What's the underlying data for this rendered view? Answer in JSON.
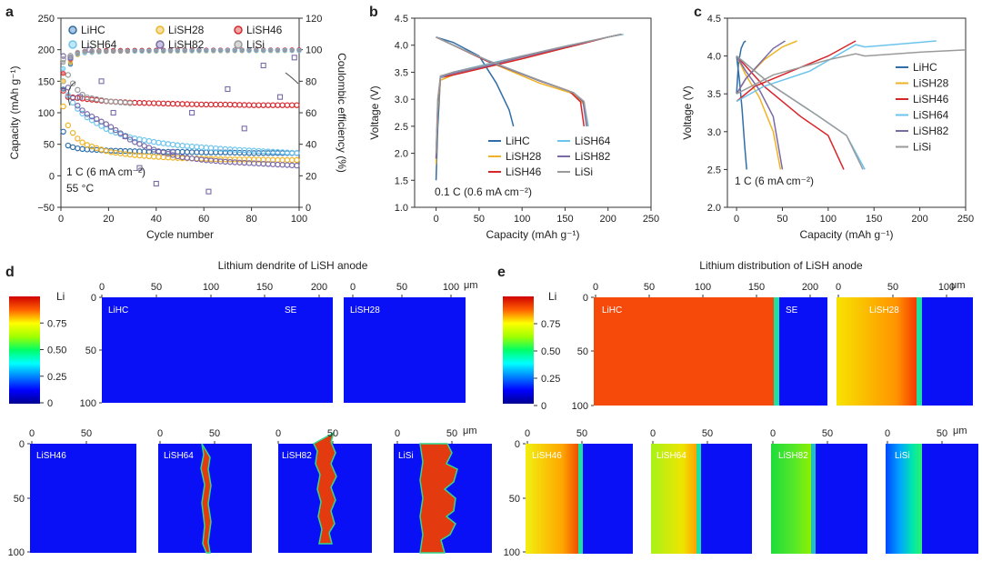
{
  "panels": {
    "a": "a",
    "b": "b",
    "c": "c",
    "d": "d",
    "e": "e"
  },
  "colors": {
    "LiHC": "#2f6ea8",
    "LiSH28": "#f0b323",
    "LiSH46": "#d7262b",
    "LiSH64": "#6cc4ee",
    "LiSH82": "#7a6aa8",
    "LiSi": "#9a9a9a"
  },
  "chart_data": [
    {
      "id": "a",
      "type": "scatter",
      "xlabel": "Cycle number",
      "ylabel": "Capacity (mAh g⁻¹)",
      "y2label": "Coulombic efficiency (%)",
      "xlim": [
        0,
        100
      ],
      "ylim": [
        -50,
        250
      ],
      "y2lim": [
        0,
        120
      ],
      "xticks": [
        "0",
        "20",
        "40",
        "60",
        "80",
        "100"
      ],
      "yticks": [
        "−50",
        "0",
        "50",
        "100",
        "150",
        "200",
        "250"
      ],
      "y2ticks": [
        "0",
        "20",
        "40",
        "60",
        "80",
        "100",
        "120"
      ],
      "annotations": [
        "1 C (6 mA cm⁻²)",
        "55 °C"
      ],
      "legend": [
        "LiHC",
        "LiSH28",
        "LiSH46",
        "LiSH64",
        "LiSH82",
        "LiSi"
      ],
      "capacity_series": [
        {
          "name": "LiHC",
          "x": [
            1,
            3,
            6,
            10,
            20,
            30,
            40,
            50,
            60,
            70,
            80,
            90,
            100
          ],
          "y": [
            70,
            48,
            44,
            42,
            40,
            39,
            38,
            38,
            37,
            37,
            36,
            36,
            36
          ]
        },
        {
          "name": "LiSH28",
          "x": [
            1,
            3,
            6,
            10,
            20,
            30,
            40,
            50,
            60,
            70,
            80,
            90,
            100
          ],
          "y": [
            110,
            80,
            62,
            50,
            38,
            33,
            30,
            28,
            27,
            26,
            26,
            25,
            25
          ]
        },
        {
          "name": "LiSH46",
          "x": [
            1,
            3,
            6,
            10,
            20,
            30,
            40,
            50,
            60,
            70,
            80,
            90,
            100
          ],
          "y": [
            135,
            125,
            124,
            122,
            118,
            116,
            115,
            114,
            113,
            113,
            112,
            112,
            112
          ]
        },
        {
          "name": "LiSH64",
          "x": [
            1,
            3,
            6,
            10,
            20,
            30,
            40,
            50,
            60,
            70,
            80,
            90,
            100
          ],
          "y": [
            150,
            128,
            110,
            95,
            72,
            60,
            53,
            48,
            45,
            42,
            40,
            38,
            36
          ]
        },
        {
          "name": "LiSH82",
          "x": [
            1,
            3,
            6,
            10,
            20,
            30,
            40,
            50,
            60,
            70,
            80,
            90,
            100
          ],
          "y": [
            190,
            140,
            115,
            100,
            80,
            55,
            40,
            30,
            25,
            22,
            20,
            18,
            16
          ]
        },
        {
          "name": "LiSi",
          "x": [
            1,
            3,
            6,
            10,
            20,
            30
          ],
          "y": [
            185,
            160,
            140,
            125,
            118,
            115
          ]
        }
      ],
      "ce_series": [
        {
          "name": "LiHC",
          "x": [
            1,
            5,
            10,
            20,
            40,
            60,
            80,
            100
          ],
          "y": [
            75,
            96,
            99,
            99.5,
            99.6,
            99.7,
            99.7,
            99.8
          ]
        },
        {
          "name": "LiSH28",
          "x": [
            1,
            5,
            10,
            20,
            40,
            60,
            80,
            100
          ],
          "y": [
            80,
            96,
            98,
            99,
            99,
            99.2,
            99.3,
            99.4
          ]
        },
        {
          "name": "LiSH46",
          "x": [
            1,
            5,
            10,
            20,
            40,
            60,
            80,
            100
          ],
          "y": [
            85,
            97,
            99,
            99.5,
            99.7,
            99.8,
            99.8,
            99.9
          ]
        },
        {
          "name": "LiSH64",
          "x": [
            1,
            5,
            10,
            20,
            40,
            60,
            80,
            100
          ],
          "y": [
            88,
            97,
            98,
            99,
            99.2,
            99.4,
            99.5,
            99.5
          ]
        },
        {
          "name": "LiSH82",
          "x": [
            4,
            8,
            12,
            17,
            22,
            27,
            33,
            40,
            47,
            55,
            62,
            70,
            77,
            85,
            92,
            98
          ],
          "y": [
            95,
            70,
            100,
            80,
            60,
            45,
            25,
            15,
            35,
            60,
            10,
            75,
            50,
            90,
            70,
            95
          ]
        },
        {
          "name": "LiSi",
          "x": [
            1,
            5,
            10,
            20,
            30
          ],
          "y": [
            92,
            98,
            99,
            99,
            99
          ]
        }
      ]
    },
    {
      "id": "b",
      "type": "line",
      "xlabel": "Capacity (mAh g⁻¹)",
      "ylabel": "Voltage (V)",
      "xlim": [
        -25,
        250
      ],
      "ylim": [
        1.0,
        4.5
      ],
      "xticks": [
        "0",
        "50",
        "100",
        "150",
        "200",
        "250"
      ],
      "yticks": [
        "1.0",
        "1.5",
        "2.0",
        "2.5",
        "3.0",
        "3.5",
        "4.0",
        "4.5"
      ],
      "annotation": "0.1 C (0.6 mA cm⁻²)",
      "legend": [
        "LiHC",
        "LiSH28",
        "LiSH46",
        "LiSH64",
        "LiSH82",
        "LiSi"
      ],
      "series": [
        {
          "name": "LiHC",
          "charge_x": [
            0,
            2,
            5,
            20,
            60,
            100,
            150,
            200,
            215
          ],
          "charge_y": [
            1.5,
            2.5,
            3.4,
            3.5,
            3.65,
            3.8,
            3.95,
            4.15,
            4.2
          ],
          "discharge_x": [
            0,
            20,
            50,
            70,
            85,
            90
          ],
          "discharge_y": [
            4.15,
            4.05,
            3.8,
            3.3,
            2.8,
            2.5
          ]
        },
        {
          "name": "LiSH28",
          "charge_x": [
            0,
            2,
            5,
            20,
            60,
            100,
            150,
            200,
            215
          ],
          "charge_y": [
            1.8,
            2.8,
            3.35,
            3.45,
            3.6,
            3.75,
            3.95,
            4.15,
            4.2
          ],
          "discharge_x": [
            0,
            20,
            60,
            120,
            160,
            172,
            176
          ],
          "discharge_y": [
            4.15,
            4.0,
            3.7,
            3.3,
            3.1,
            2.9,
            2.5
          ]
        },
        {
          "name": "LiSH46",
          "charge_x": [
            0,
            2,
            5,
            20,
            60,
            100,
            150,
            200,
            215
          ],
          "charge_y": [
            1.9,
            2.9,
            3.4,
            3.45,
            3.6,
            3.75,
            3.95,
            4.15,
            4.2
          ],
          "discharge_x": [
            0,
            20,
            60,
            120,
            155,
            168,
            172
          ],
          "discharge_y": [
            4.15,
            4.0,
            3.7,
            3.35,
            3.15,
            2.95,
            2.5
          ]
        },
        {
          "name": "LiSH64",
          "charge_x": [
            0,
            2,
            5,
            20,
            60,
            100,
            150,
            200,
            218
          ],
          "charge_y": [
            2.0,
            3.0,
            3.4,
            3.5,
            3.65,
            3.8,
            3.98,
            4.15,
            4.2
          ],
          "discharge_x": [
            0,
            20,
            60,
            120,
            160,
            172,
            177
          ],
          "discharge_y": [
            4.15,
            4.0,
            3.72,
            3.35,
            3.12,
            2.95,
            2.5
          ]
        },
        {
          "name": "LiSH82",
          "charge_x": [
            0,
            2,
            5,
            20,
            60,
            100,
            150,
            200,
            215
          ],
          "charge_y": [
            1.9,
            2.9,
            3.42,
            3.48,
            3.62,
            3.78,
            3.97,
            4.15,
            4.2
          ],
          "discharge_x": [
            0,
            20,
            60,
            120,
            160,
            171,
            175
          ],
          "discharge_y": [
            4.15,
            4.0,
            3.71,
            3.34,
            3.12,
            2.95,
            2.5
          ]
        },
        {
          "name": "LiSi",
          "charge_x": [
            0,
            2,
            5,
            20,
            60,
            100,
            150,
            200,
            216
          ],
          "charge_y": [
            2.0,
            3.0,
            3.43,
            3.5,
            3.64,
            3.8,
            3.98,
            4.15,
            4.2
          ],
          "discharge_x": [
            0,
            20,
            60,
            120,
            160,
            172,
            176
          ],
          "discharge_y": [
            4.15,
            4.0,
            3.72,
            3.35,
            3.12,
            2.96,
            2.5
          ]
        }
      ]
    },
    {
      "id": "c",
      "type": "line",
      "xlabel": "Capacity (mAh g⁻¹)",
      "ylabel": "Voltage (V)",
      "xlim": [
        -10,
        250
      ],
      "ylim": [
        2.0,
        4.5
      ],
      "xticks": [
        "0",
        "50",
        "100",
        "150",
        "200",
        "250"
      ],
      "yticks": [
        "2.0",
        "2.5",
        "3.0",
        "3.5",
        "4.0",
        "4.5"
      ],
      "annotation": "1 C (6 mA cm⁻²)",
      "legend": [
        "LiHC",
        "LiSH28",
        "LiSH46",
        "LiSH64",
        "LiSH82",
        "LiSi"
      ],
      "series": [
        {
          "name": "LiHC",
          "charge_x": [
            0,
            2,
            5,
            8,
            10
          ],
          "charge_y": [
            3.5,
            3.9,
            4.1,
            4.18,
            4.2
          ],
          "discharge_x": [
            0,
            3,
            6,
            9,
            11
          ],
          "discharge_y": [
            4.0,
            3.7,
            3.3,
            2.8,
            2.5
          ]
        },
        {
          "name": "LiSH28",
          "charge_x": [
            0,
            10,
            30,
            50,
            66
          ],
          "charge_y": [
            3.5,
            3.7,
            3.95,
            4.12,
            4.2
          ],
          "discharge_x": [
            0,
            10,
            25,
            40,
            48
          ],
          "discharge_y": [
            4.0,
            3.75,
            3.45,
            3.0,
            2.5
          ]
        },
        {
          "name": "LiSH46",
          "charge_x": [
            0,
            20,
            60,
            100,
            130
          ],
          "charge_y": [
            3.4,
            3.6,
            3.8,
            4.0,
            4.2
          ],
          "discharge_x": [
            0,
            30,
            70,
            100,
            117
          ],
          "discharge_y": [
            4.0,
            3.6,
            3.2,
            2.95,
            2.5
          ]
        },
        {
          "name": "LiSH64",
          "charge_x": [
            0,
            30,
            80,
            130,
            140,
            170,
            218
          ],
          "charge_y": [
            3.4,
            3.6,
            3.8,
            4.15,
            4.12,
            4.15,
            4.2
          ],
          "discharge_x": [
            0,
            40,
            90,
            120,
            140
          ],
          "discharge_y": [
            4.0,
            3.6,
            3.2,
            2.95,
            2.5
          ]
        },
        {
          "name": "LiSH82",
          "charge_x": [
            0,
            10,
            25,
            40,
            53
          ],
          "charge_y": [
            3.5,
            3.7,
            3.9,
            4.1,
            4.2
          ],
          "discharge_x": [
            0,
            10,
            25,
            40,
            50
          ],
          "discharge_y": [
            4.0,
            3.8,
            3.55,
            3.2,
            2.5
          ]
        },
        {
          "name": "LiSi",
          "charge_x": [
            0,
            40,
            100,
            130,
            140,
            200,
            250
          ],
          "charge_y": [
            3.5,
            3.75,
            3.95,
            4.03,
            4.0,
            4.05,
            4.08
          ],
          "discharge_x": [
            0,
            40,
            90,
            120,
            138
          ],
          "discharge_y": [
            4.0,
            3.6,
            3.2,
            2.95,
            2.5
          ]
        }
      ]
    }
  ],
  "panel_d": {
    "title": "Lithium dendrite of LiSH anode",
    "unit": "μm",
    "colorbar": {
      "label": "Li",
      "ticks": [
        "1",
        "0.75",
        "0.50",
        "0.25",
        "0"
      ]
    },
    "top_x": [
      "0",
      "50",
      "100",
      "150",
      "200"
    ],
    "top_x2": [
      "0",
      "50",
      "100"
    ],
    "top_y": [
      "0",
      "50",
      "100"
    ],
    "bot_x": [
      "0",
      "50"
    ],
    "bot_y": [
      "0",
      "50",
      "100"
    ],
    "labels": {
      "LiHC": "LiHC",
      "SE": "SE",
      "LiSH28": "LiSH28",
      "LiSH46": "LiSH46",
      "LiSH64": "LiSH64",
      "LiSH82": "LiSH82",
      "LiSi": "LiSi"
    }
  },
  "panel_e": {
    "title": "Lithium distribution of LiSH anode",
    "unit": "μm",
    "colorbar": {
      "label": "Li",
      "ticks": [
        "1",
        "0.75",
        "0.50",
        "0.25",
        "0"
      ]
    },
    "top_x": [
      "0",
      "50",
      "100",
      "150",
      "200"
    ],
    "top_x2": [
      "0",
      "50",
      "100"
    ],
    "top_y": [
      "0",
      "50",
      "100"
    ],
    "bot_x": [
      "0",
      "50",
      "0",
      "50",
      "0",
      "50",
      "0",
      "50"
    ],
    "bot_y": [
      "0",
      "50",
      "100"
    ],
    "labels": {
      "LiHC": "LiHC",
      "SE": "SE",
      "LiSH28": "LiSH28",
      "LiSH46": "LiSH46",
      "LiSH64": "LiSH64",
      "LiSH82": "LiSH82",
      "LiSi": "LiSi"
    }
  }
}
